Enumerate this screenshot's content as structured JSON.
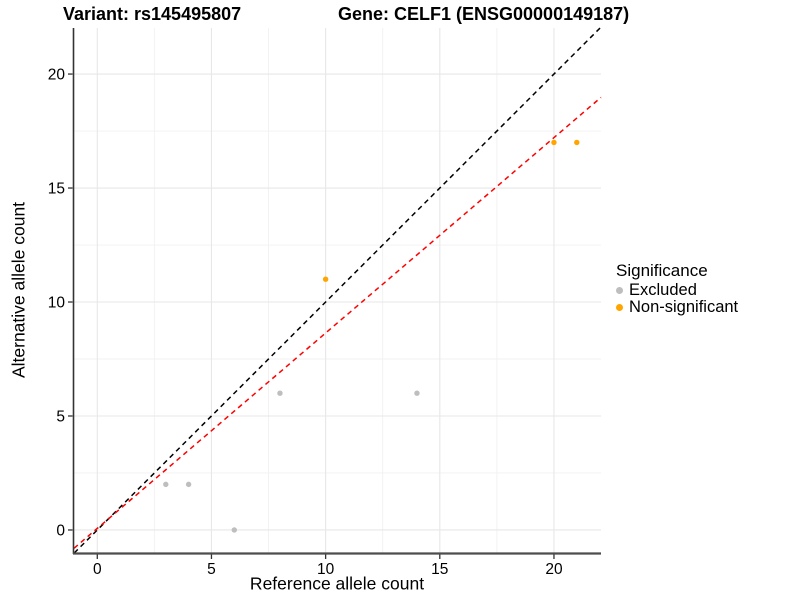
{
  "titles": {
    "variant": "Variant: rs145495807",
    "gene": "Gene: CELF1 (ENSG00000149187)"
  },
  "legend": {
    "title": "Significance",
    "items": [
      {
        "label": "Excluded",
        "color": "#BEBEBE"
      },
      {
        "label": "Non-significant",
        "color": "#FFA500"
      }
    ]
  },
  "chart_data": {
    "type": "scatter",
    "xlabel": "Reference allele count",
    "ylabel": "Alternative allele count",
    "xlim": [
      -1.02,
      22.06
    ],
    "ylim": [
      -1.01,
      22.02
    ],
    "x_ticks": [
      0,
      5,
      10,
      15,
      20
    ],
    "y_ticks": [
      0,
      5,
      10,
      15,
      20
    ],
    "x_minor": [
      2.5,
      7.5,
      12.5,
      17.5
    ],
    "y_minor": [
      2.5,
      7.5,
      12.5,
      17.5
    ],
    "grid": "major+minor",
    "legend_position": "right",
    "series": [
      {
        "name": "Excluded",
        "color": "#BEBEBE",
        "points": [
          [
            3,
            2
          ],
          [
            4,
            2
          ],
          [
            6,
            0
          ],
          [
            8,
            6
          ],
          [
            14,
            6
          ]
        ]
      },
      {
        "name": "Non-significant",
        "color": "#FFA500",
        "points": [
          [
            10,
            11
          ],
          [
            20,
            17
          ],
          [
            21,
            17
          ]
        ]
      }
    ],
    "lines": [
      {
        "name": "identity",
        "slope": 1.0,
        "intercept": 0.0,
        "color": "#000000",
        "dash": "5 4"
      },
      {
        "name": "fit",
        "slope": 0.857,
        "intercept": 0.07,
        "color": "#FF0000",
        "dash": "5 4"
      }
    ],
    "colors": {
      "grid_major": "#E7E7E7",
      "grid_minor": "#F1F1F1",
      "axis_line": "#333333"
    }
  }
}
